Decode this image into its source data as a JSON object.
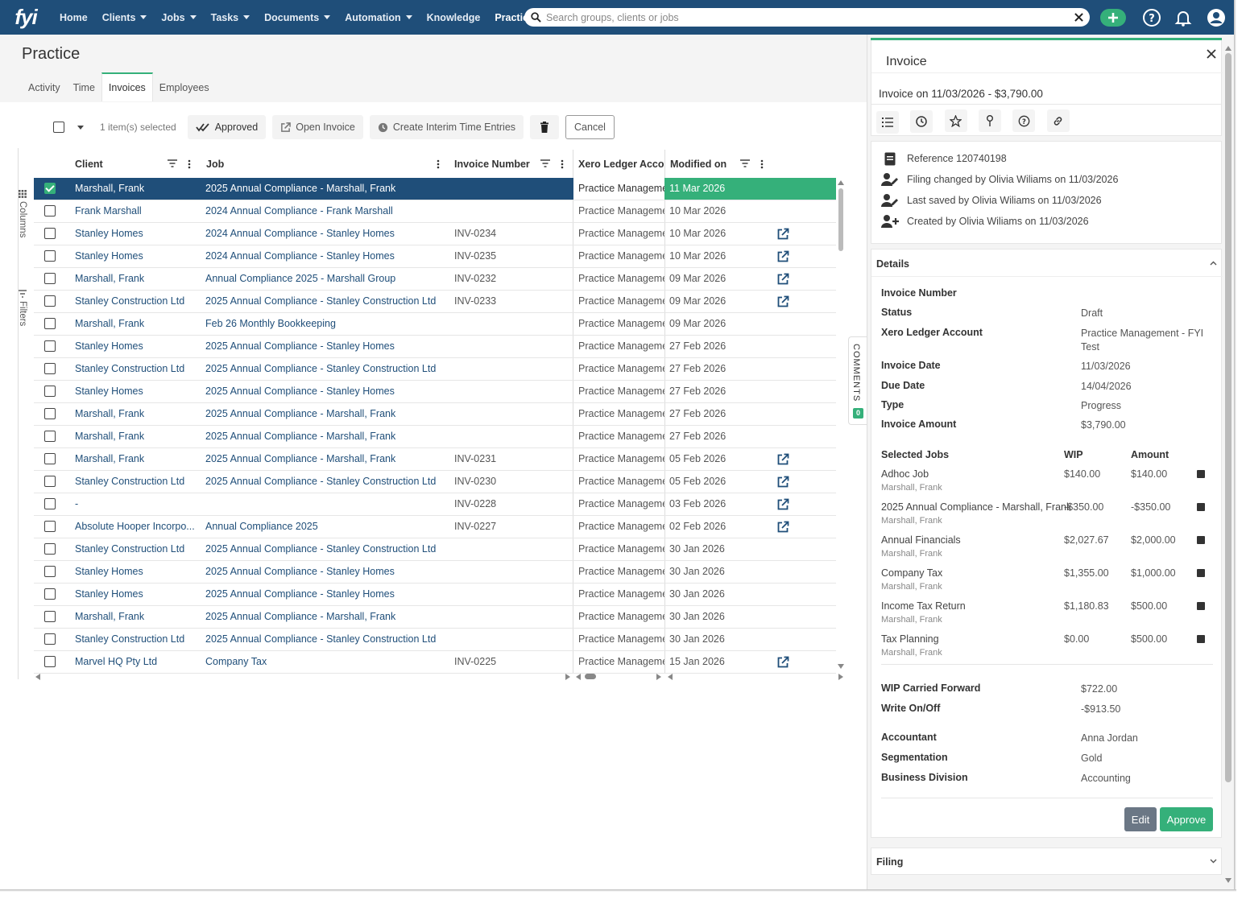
{
  "nav": {
    "logo": "fyi",
    "items": [
      {
        "label": "Home",
        "caret": false
      },
      {
        "label": "Clients",
        "caret": true
      },
      {
        "label": "Jobs",
        "caret": true
      },
      {
        "label": "Tasks",
        "caret": true
      },
      {
        "label": "Documents",
        "caret": true
      },
      {
        "label": "Automation",
        "caret": true
      },
      {
        "label": "Knowledge",
        "caret": false
      },
      {
        "label": "Practice",
        "caret": false,
        "active": true
      }
    ],
    "search_placeholder": "Search groups, clients or jobs"
  },
  "page": {
    "title": "Practice",
    "tabs": [
      "Activity",
      "Time",
      "Invoices",
      "Employees"
    ],
    "active_tab": "Invoices"
  },
  "toolbar": {
    "selected_text": "1 item(s) selected",
    "approved_label": "Approved",
    "open_invoice_label": "Open Invoice",
    "interim_label": "Create Interim Time Entries",
    "cancel_label": "Cancel"
  },
  "side": {
    "columns_label": "Columns",
    "filters_label": "Filters"
  },
  "grid": {
    "headers": {
      "client": "Client",
      "job": "Job",
      "invoice_number": "Invoice Number",
      "xero": "Xero Ledger Account",
      "modified": "Modified on"
    },
    "rows": [
      {
        "client": "Marshall, Frank",
        "job": "2025 Annual Compliance - Marshall, Frank",
        "inv": "",
        "xero": "Practice Management - FYI Test",
        "mod": "11 Mar 2026",
        "link": false,
        "selected": true
      },
      {
        "client": "Frank Marshall",
        "job": "2024 Annual Compliance - Frank Marshall",
        "inv": "",
        "xero": "Practice Management - FYI Test",
        "mod": "10 Mar 2026",
        "link": false
      },
      {
        "client": "Stanley Homes",
        "job": "2024 Annual Compliance - Stanley Homes",
        "inv": "INV-0234",
        "xero": "Practice Management - FYI Test",
        "mod": "10 Mar 2026",
        "link": true
      },
      {
        "client": "Stanley Homes",
        "job": "2024 Annual Compliance - Stanley Homes",
        "inv": "INV-0235",
        "xero": "Practice Management - FYI Test",
        "mod": "10 Mar 2026",
        "link": true
      },
      {
        "client": "Marshall, Frank",
        "job": "Annual Compliance 2025 - Marshall Group",
        "inv": "INV-0232",
        "xero": "Practice Management - FYI Test",
        "mod": "09 Mar 2026",
        "link": true
      },
      {
        "client": "Stanley Construction Ltd",
        "job": "2025 Annual Compliance - Stanley Construction Ltd",
        "inv": "INV-0233",
        "xero": "Practice Management - FYI Test",
        "mod": "09 Mar 2026",
        "link": true
      },
      {
        "client": "Marshall, Frank",
        "job": "Feb 26 Monthly Bookkeeping",
        "inv": "",
        "xero": "Practice Management - FYI Test",
        "mod": "09 Mar 2026",
        "link": false
      },
      {
        "client": "Stanley Homes",
        "job": "2025 Annual Compliance - Stanley Homes",
        "inv": "",
        "xero": "Practice Management - FYI Test",
        "mod": "27 Feb 2026",
        "link": false
      },
      {
        "client": "Stanley Construction Ltd",
        "job": "2025 Annual Compliance - Stanley Construction Ltd",
        "inv": "",
        "xero": "Practice Management - FYI Test",
        "mod": "27 Feb 2026",
        "link": false
      },
      {
        "client": "Stanley Homes",
        "job": "2025 Annual Compliance - Stanley Homes",
        "inv": "",
        "xero": "Practice Management - FYI Test",
        "mod": "27 Feb 2026",
        "link": false
      },
      {
        "client": "Marshall, Frank",
        "job": "2025 Annual Compliance - Marshall, Frank",
        "inv": "",
        "xero": "Practice Management - FYI Test",
        "mod": "27 Feb 2026",
        "link": false
      },
      {
        "client": "Marshall, Frank",
        "job": "2025 Annual Compliance - Marshall, Frank",
        "inv": "",
        "xero": "Practice Management - FYI Test",
        "mod": "27 Feb 2026",
        "link": false
      },
      {
        "client": "Marshall, Frank",
        "job": "2025 Annual Compliance - Marshall, Frank",
        "inv": "INV-0231",
        "xero": "Practice Management - FYI Test",
        "mod": "05 Feb 2026",
        "link": true
      },
      {
        "client": "Stanley Construction Ltd",
        "job": "2025 Annual Compliance - Stanley Construction Ltd",
        "inv": "INV-0230",
        "xero": "Practice Management - FYI Test",
        "mod": "05 Feb 2026",
        "link": true
      },
      {
        "client": "-",
        "job": "",
        "inv": "INV-0228",
        "xero": "Practice Management - FYI Test",
        "mod": "03 Feb 2026",
        "link": true
      },
      {
        "client": "Absolute Hooper Incorpo...",
        "job": "Annual Compliance 2025",
        "inv": "INV-0227",
        "xero": "Practice Management - FYI Test",
        "mod": "02 Feb 2026",
        "link": true
      },
      {
        "client": "Stanley Construction Ltd",
        "job": "2025 Annual Compliance - Stanley Construction Ltd",
        "inv": "",
        "xero": "Practice Management - FYI Test",
        "mod": "30 Jan 2026",
        "link": false
      },
      {
        "client": "Stanley Homes",
        "job": "2025 Annual Compliance - Stanley Homes",
        "inv": "",
        "xero": "Practice Management - FYI Test",
        "mod": "30 Jan 2026",
        "link": false
      },
      {
        "client": "Stanley Homes",
        "job": "2025 Annual Compliance - Stanley Homes",
        "inv": "",
        "xero": "Practice Management - FYI Test",
        "mod": "30 Jan 2026",
        "link": false
      },
      {
        "client": "Marshall, Frank",
        "job": "2025 Annual Compliance - Marshall, Frank",
        "inv": "",
        "xero": "Practice Management - FYI Test",
        "mod": "30 Jan 2026",
        "link": false
      },
      {
        "client": "Stanley Construction Ltd",
        "job": "2025 Annual Compliance - Stanley Construction Ltd",
        "inv": "",
        "xero": "Practice Management - FYI Test",
        "mod": "30 Jan 2026",
        "link": false
      },
      {
        "client": "Marvel HQ Pty Ltd",
        "job": "Company Tax",
        "inv": "INV-0225",
        "xero": "Practice Management - FYI Test",
        "mod": "15 Jan 2026",
        "link": true
      }
    ]
  },
  "comments": {
    "label": "COMMENTS",
    "count": "0"
  },
  "panel": {
    "title": "Invoice",
    "subtitle": "Invoice on 11/03/2026 - $3,790.00",
    "activity": [
      {
        "icon": "document-icon",
        "text": "Reference 120740198"
      },
      {
        "icon": "user-edit-icon",
        "text": "Filing changed by Olivia Wiliams on 11/03/2026"
      },
      {
        "icon": "user-edit-icon",
        "text": "Last saved by Olivia Wiliams on 11/03/2026"
      },
      {
        "icon": "user-add-icon",
        "text": "Created by Olivia Wiliams on 11/03/2026"
      }
    ],
    "details_label": "Details",
    "details": [
      {
        "k": "Invoice Number",
        "v": ""
      },
      {
        "k": "Status",
        "v": "Draft"
      },
      {
        "k": "Xero Ledger Account",
        "v": "Practice Management - FYI Test"
      },
      {
        "k": "Invoice Date",
        "v": "11/03/2026"
      },
      {
        "k": "Due Date",
        "v": "14/04/2026"
      },
      {
        "k": "Type",
        "v": "Progress"
      },
      {
        "k": "Invoice Amount",
        "v": "$3,790.00"
      }
    ],
    "jobs_header": {
      "job": "Selected Jobs",
      "wip": "WIP",
      "amount": "Amount"
    },
    "jobs": [
      {
        "name": "Adhoc Job",
        "client": "Marshall, Frank",
        "wip": "$140.00",
        "amount": "$140.00"
      },
      {
        "name": "2025 Annual Compliance - Marshall, Frank",
        "client": "Marshall, Frank",
        "wip": "-$350.00",
        "amount": "-$350.00"
      },
      {
        "name": "Annual Financials",
        "client": "Marshall, Frank",
        "wip": "$2,027.67",
        "amount": "$2,000.00"
      },
      {
        "name": "Company Tax",
        "client": "Marshall, Frank",
        "wip": "$1,355.00",
        "amount": "$1,000.00"
      },
      {
        "name": "Income Tax Return",
        "client": "Marshall, Frank",
        "wip": "$1,180.83",
        "amount": "$500.00"
      },
      {
        "name": "Tax Planning",
        "client": "Marshall, Frank",
        "wip": "$0.00",
        "amount": "$500.00"
      }
    ],
    "totals": [
      {
        "k": "WIP Carried Forward",
        "v": "$722.00"
      },
      {
        "k": "Write On/Off",
        "v": "-$913.50"
      }
    ],
    "extra": [
      {
        "k": "Accountant",
        "v": "Anna Jordan"
      },
      {
        "k": "Segmentation",
        "v": "Gold"
      },
      {
        "k": "Business Division",
        "v": "Accounting"
      }
    ],
    "edit_label": "Edit",
    "approve_label": "Approve",
    "filing_label": "Filing"
  },
  "colors": {
    "navy": "#1f4e79",
    "green": "#35b07a"
  }
}
